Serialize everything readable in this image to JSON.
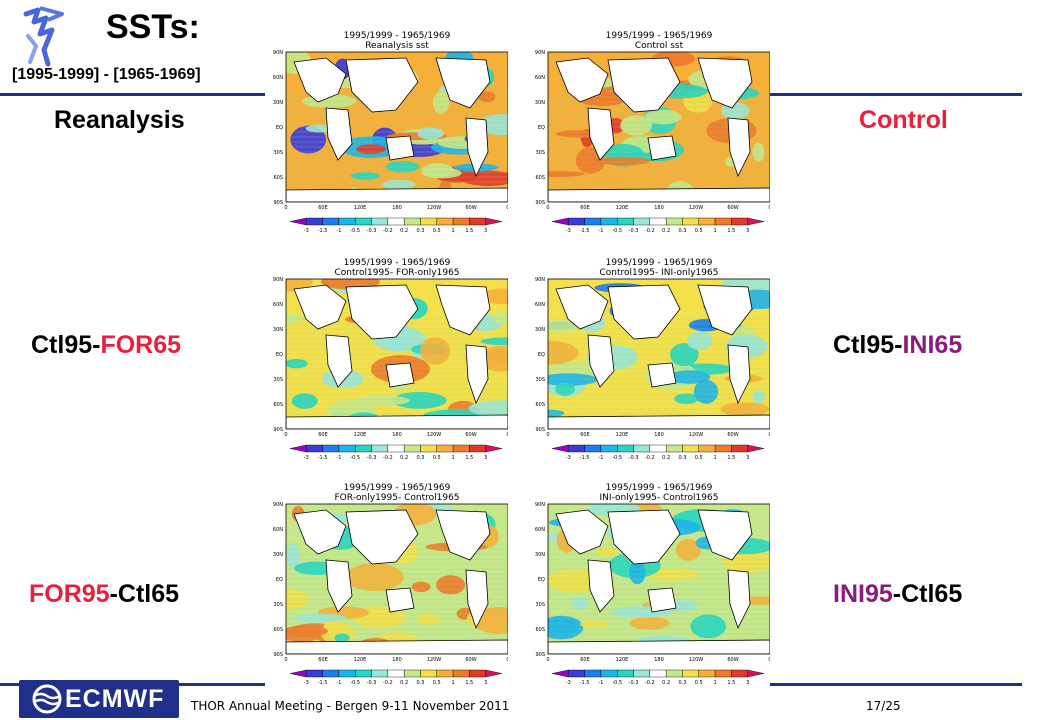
{
  "slide": {
    "title": "SSTs:",
    "subtitle": "[1995-1999] - [1965-1969]",
    "labels": {
      "reanalysis": "Reanalysis",
      "control": "Control",
      "ctl95_prefix": "Ctl95-",
      "for65": "FOR65",
      "ini65": "INI65",
      "for95": "FOR95",
      "ini95": "INI95",
      "ctl65_suffix": "-Ctl65"
    }
  },
  "panels": [
    {
      "id": "reanalysis",
      "line1": "1995/1999 - 1965/1969",
      "line2": "Reanalysis sst"
    },
    {
      "id": "control",
      "line1": "1995/1999 - 1965/1969",
      "line2": "Control sst"
    },
    {
      "id": "ctl-for",
      "line1": "1995/1999 - 1965/1969",
      "line2": "Control1995- FOR-only1965"
    },
    {
      "id": "ctl-ini",
      "line1": "1995/1999 - 1965/1969",
      "line2": "Control1995- INI-only1965"
    },
    {
      "id": "for-ctl",
      "line1": "1995/1999 - 1965/1969",
      "line2": "FOR-only1995- Control1965"
    },
    {
      "id": "ini-ctl",
      "line1": "1995/1999 - 1965/1969",
      "line2": "INI-only1995- Control1965"
    }
  ],
  "map_axes": {
    "lat_ticks": [
      "90N",
      "60N",
      "30N",
      "EQ",
      "30S",
      "60S",
      "90S"
    ],
    "lon_ticks": [
      "0",
      "60E",
      "120E",
      "180",
      "120W",
      "60W",
      "0"
    ]
  },
  "colorbar": {
    "ticks": [
      "-3",
      "-1.5",
      "-1",
      "-0.5",
      "-0.3",
      "-0.2",
      "0.2",
      "0.3",
      "0.5",
      "1",
      "1.5",
      "3"
    ],
    "colors": [
      "#9b00c9",
      "#3b3bdb",
      "#1e7cf0",
      "#1fb4e8",
      "#27d6c0",
      "#9be6d8",
      "#ffffff",
      "#c6e88a",
      "#f4e04a",
      "#f6b03a",
      "#ef7a2a",
      "#e23a2a",
      "#d4145a"
    ]
  },
  "footer": {
    "logo_text": "ECMWF",
    "meeting": "THOR Annual Meeting - Bergen  9-11 November 2011",
    "page": "17/25"
  },
  "colors": {
    "brand_blue": "#1f2f8a",
    "accent_red": "#e8203c",
    "accent_purple": "#8a1c7c"
  }
}
